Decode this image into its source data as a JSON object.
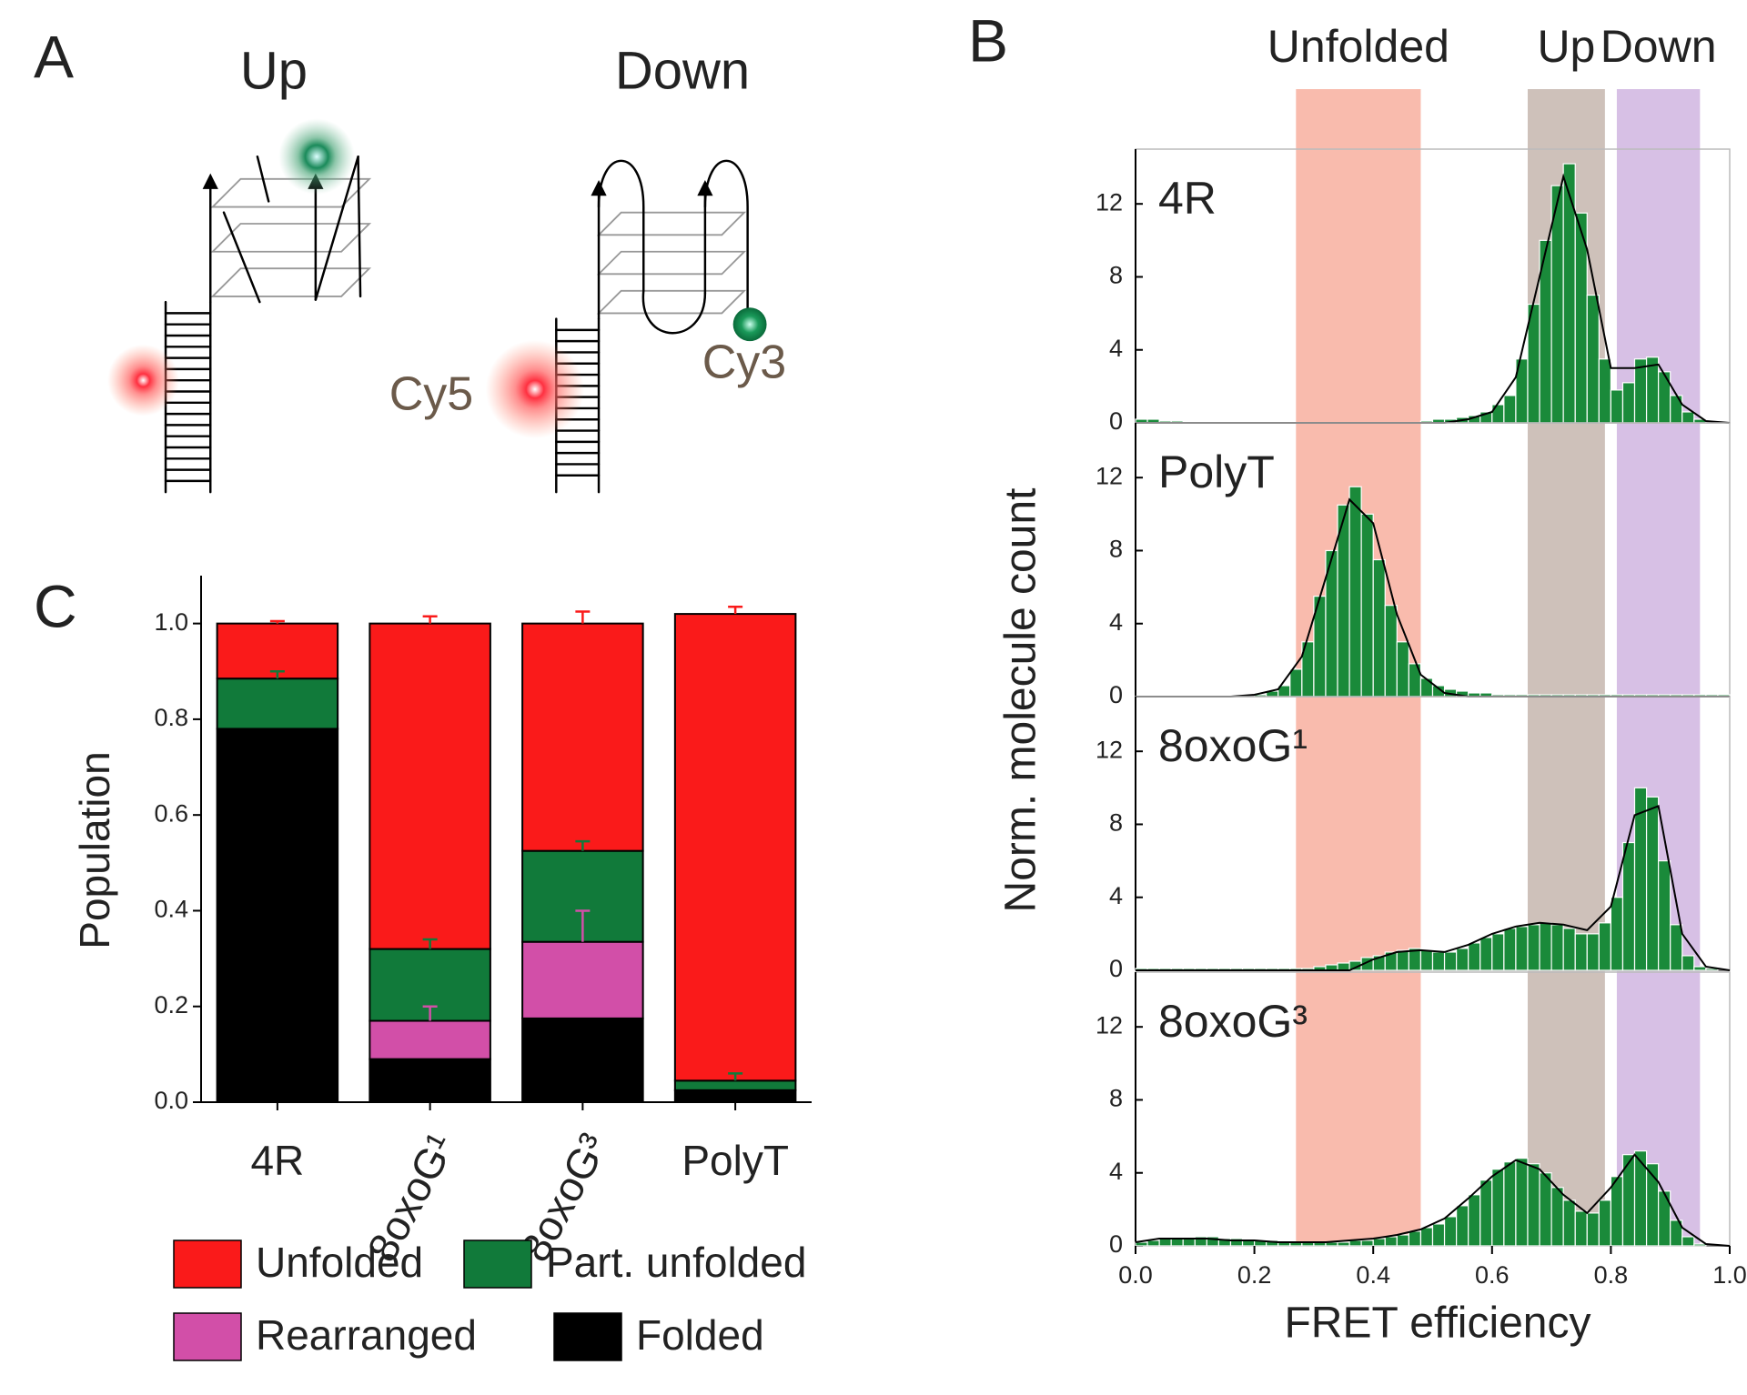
{
  "diagram": {
    "panel_label": "A",
    "labels": [
      "Up",
      "Down",
      "Cy5",
      "Cy3"
    ]
  },
  "chart_data": [
    {
      "type": "histogram",
      "panel_label": "B",
      "xlabel": "FRET efficiency",
      "ylabel": "Norm. molecule count",
      "xlim": [
        0,
        1
      ],
      "xticks": [
        {
          "value": 0,
          "label": "0.0"
        },
        0.2,
        0.4,
        0.6,
        0.8,
        {
          "value": 1,
          "label": "1.0"
        }
      ],
      "ylim": [
        0,
        15
      ],
      "yticks": [
        0,
        4,
        8,
        12
      ],
      "color": "#1a8a3a",
      "fit_color": "#000000",
      "bands": [
        {
          "label": "Unfolded",
          "range": [
            0.27,
            0.48
          ],
          "color": "#f8b4a4"
        },
        {
          "label": "Up",
          "range": [
            0.66,
            0.79
          ],
          "color": "#c9bab3"
        },
        {
          "label": "Down",
          "range": [
            0.81,
            0.95
          ],
          "color": "#d3b9e2"
        }
      ],
      "bins": [
        0,
        0.02,
        0.04,
        0.06,
        0.08,
        0.1,
        0.12,
        0.14,
        0.16,
        0.18,
        0.2,
        0.22,
        0.24,
        0.26,
        0.28,
        0.3,
        0.32,
        0.34,
        0.36,
        0.38,
        0.4,
        0.42,
        0.44,
        0.46,
        0.48,
        0.5,
        0.52,
        0.54,
        0.56,
        0.58,
        0.6,
        0.62,
        0.64,
        0.66,
        0.68,
        0.7,
        0.72,
        0.74,
        0.76,
        0.78,
        0.8,
        0.82,
        0.84,
        0.86,
        0.88,
        0.9,
        0.92,
        0.94,
        0.96,
        0.98,
        1
      ],
      "fit_x": [
        0,
        0.04,
        0.08,
        0.12,
        0.16,
        0.2,
        0.24,
        0.28,
        0.32,
        0.36,
        0.4,
        0.44,
        0.48,
        0.52,
        0.56,
        0.6,
        0.64,
        0.68,
        0.72,
        0.76,
        0.8,
        0.84,
        0.88,
        0.92,
        0.96,
        1
      ],
      "panels": [
        {
          "label": "4R",
          "counts": [
            0.2,
            0.2,
            0.1,
            0.1,
            0,
            0,
            0,
            0,
            0,
            0,
            0,
            0,
            0,
            0,
            0,
            0,
            0,
            0,
            0,
            0,
            0,
            0,
            0,
            0,
            0.1,
            0.2,
            0.2,
            0.3,
            0.4,
            0.6,
            1.0,
            1.5,
            3.5,
            6.5,
            10,
            13,
            14.2,
            11.5,
            7,
            3.5,
            1.8,
            2.2,
            3.5,
            3.6,
            2.8,
            1.5,
            0.6,
            0.2,
            0,
            0
          ],
          "fit": [
            0,
            0,
            0,
            0,
            0,
            0,
            0,
            0,
            0,
            0,
            0,
            0,
            0,
            0,
            0.2,
            0.6,
            2.5,
            8,
            13.5,
            9.5,
            3,
            3,
            3.2,
            1,
            0.1,
            0
          ]
        },
        {
          "label": "PolyT",
          "counts": [
            0,
            0,
            0,
            0,
            0,
            0,
            0,
            0,
            0,
            0,
            0.1,
            0.3,
            0.6,
            1.5,
            3,
            5.5,
            8,
            10.5,
            11.5,
            10,
            7.5,
            5,
            3,
            1.8,
            1.0,
            0.6,
            0.4,
            0.3,
            0.2,
            0.2,
            0.1,
            0.1,
            0.1,
            0.1,
            0.1,
            0.1,
            0.1,
            0.1,
            0.1,
            0.1,
            0.1,
            0.1,
            0.1,
            0.1,
            0.1,
            0.1,
            0.1,
            0.1,
            0.1,
            0.1
          ],
          "fit": [
            0,
            0,
            0,
            0,
            0,
            0.1,
            0.4,
            2.2,
            6.5,
            10.8,
            9.5,
            4.5,
            1.2,
            0.2,
            0,
            0,
            0,
            0,
            0,
            0,
            0,
            0,
            0,
            0,
            0,
            0
          ]
        },
        {
          "label": "8oxoG¹",
          "counts": [
            0.1,
            0.1,
            0.1,
            0.1,
            0.1,
            0.1,
            0.1,
            0.1,
            0.1,
            0.1,
            0.1,
            0.1,
            0.1,
            0.1,
            0.1,
            0.2,
            0.3,
            0.4,
            0.5,
            0.7,
            0.8,
            1.0,
            1.1,
            1.2,
            1.1,
            1.0,
            1.0,
            1.2,
            1.5,
            1.8,
            2.0,
            2.3,
            2.4,
            2.5,
            2.6,
            2.5,
            2.3,
            2.0,
            2.0,
            2.6,
            4,
            7,
            10,
            9.5,
            6,
            2.5,
            0.8,
            0.2,
            0.1,
            0
          ],
          "fit": [
            0,
            0,
            0,
            0,
            0,
            0,
            0,
            0,
            0,
            0,
            0.6,
            1.0,
            1.1,
            1.0,
            1.4,
            2.0,
            2.4,
            2.6,
            2.5,
            2.2,
            3.5,
            8.5,
            9,
            2,
            0.2,
            0
          ]
        },
        {
          "label": "8oxoG³",
          "counts": [
            0.2,
            0.3,
            0.4,
            0.4,
            0.4,
            0.5,
            0.5,
            0.4,
            0.4,
            0.3,
            0.3,
            0.3,
            0.2,
            0.2,
            0.2,
            0.2,
            0.2,
            0.2,
            0.3,
            0.3,
            0.4,
            0.5,
            0.6,
            0.8,
            1.0,
            1.2,
            1.6,
            2.2,
            2.8,
            3.6,
            4.2,
            4.6,
            4.8,
            4.5,
            4.0,
            3.2,
            2.5,
            1.9,
            1.8,
            2.5,
            3.8,
            5.0,
            5.2,
            4.5,
            3.0,
            1.4,
            0.5,
            0.1,
            0,
            0
          ],
          "fit": [
            0.2,
            0.4,
            0.4,
            0.4,
            0.3,
            0.3,
            0.2,
            0.2,
            0.2,
            0.3,
            0.4,
            0.6,
            0.9,
            1.5,
            2.6,
            3.8,
            4.7,
            4.2,
            2.8,
            1.8,
            3.2,
            5.0,
            3.5,
            1.0,
            0.1,
            0
          ]
        }
      ]
    },
    {
      "type": "stacked_bar",
      "panel_label": "C",
      "ylabel": "Population",
      "categories": [
        "4R",
        "8oxoG¹",
        "8oxoG³",
        "PolyT"
      ],
      "ylim": [
        0,
        1.1
      ],
      "yticks": [
        {
          "value": 0,
          "label": "0.0"
        },
        0.2,
        0.4,
        0.6,
        0.8,
        {
          "value": 1,
          "label": "1.0"
        }
      ],
      "series": [
        {
          "name": "Folded",
          "color": "#000000",
          "values": [
            0.78,
            0.09,
            0.175,
            0.025
          ],
          "errors": [
            null,
            null,
            null,
            null
          ],
          "error_color": "#000000"
        },
        {
          "name": "Rearranged",
          "color": "#d24fa8",
          "values": [
            0,
            0.08,
            0.16,
            0
          ],
          "errors": [
            null,
            0.03,
            0.065,
            null
          ],
          "error_color": "#d24fa8"
        },
        {
          "name": "Part. unfolded",
          "color": "#117a3a",
          "values": [
            0.105,
            0.15,
            0.19,
            0.02
          ],
          "errors": [
            0.015,
            0.02,
            0.02,
            0.015
          ],
          "error_color": "#117a3a"
        },
        {
          "name": "Unfolded",
          "color": "#fa1a1a",
          "values": [
            0.115,
            0.68,
            0.475,
            0.975
          ],
          "errors": [
            0.005,
            0.015,
            0.025,
            0.015
          ],
          "error_color": "#fa1a1a"
        }
      ]
    }
  ]
}
